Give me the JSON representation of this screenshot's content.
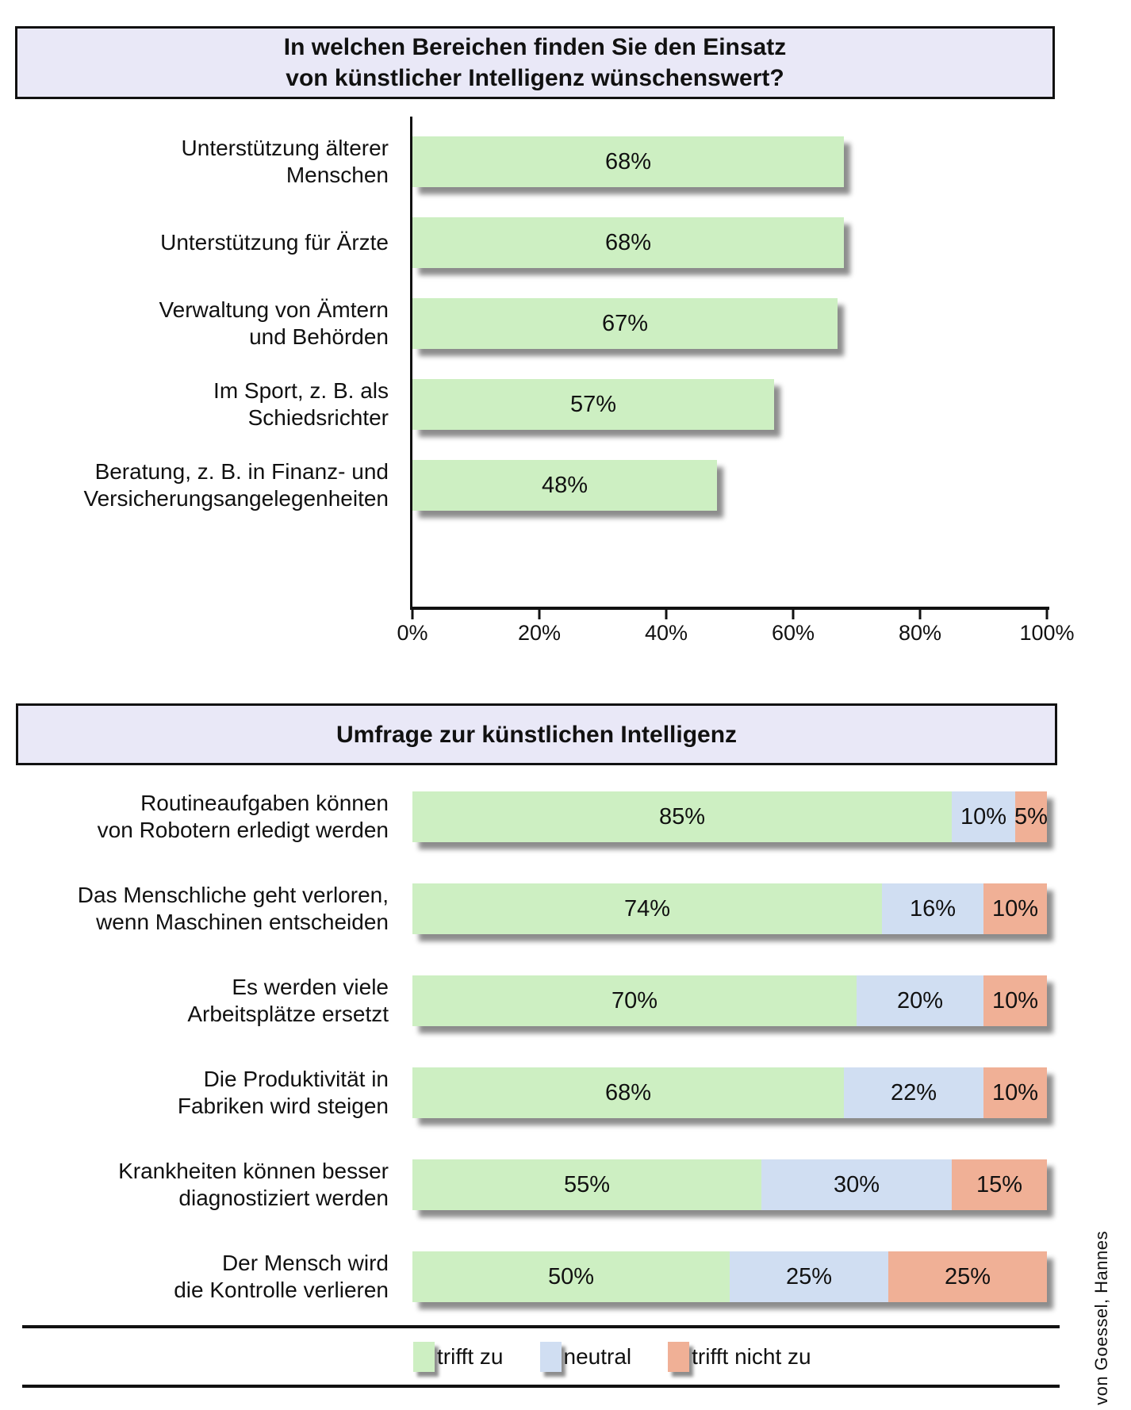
{
  "colors": {
    "agree_green": "#cdefc2",
    "neutral_blue": "#d0def2",
    "disagree_salmon": "#f0b096",
    "header_bg": "#e9e8f7",
    "border": "#111111"
  },
  "chart1": {
    "title_line1": "In welchen Bereichen finden Sie den Einsatz",
    "title_line2": "von künstlicher Intelligenz wünschenswert?",
    "bars": [
      {
        "label_line1": "Unterstützung älterer",
        "label_line2": "Menschen",
        "value": 68,
        "value_label": "68%"
      },
      {
        "label_line1": "Unterstützung für Ärzte",
        "label_line2": "",
        "value": 68,
        "value_label": "68%"
      },
      {
        "label_line1": "Verwaltung von Ämtern",
        "label_line2": "und Behörden",
        "value": 67,
        "value_label": "67%"
      },
      {
        "label_line1": "Im Sport, z. B. als",
        "label_line2": "Schiedsrichter",
        "value": 57,
        "value_label": "57%"
      },
      {
        "label_line1": "Beratung, z. B. in Finanz- und",
        "label_line2": "Versicherungsangelegenheiten",
        "value": 48,
        "value_label": "48%"
      }
    ],
    "axis_ticks": [
      "0%",
      "20%",
      "40%",
      "60%",
      "80%",
      "100%"
    ]
  },
  "chart2": {
    "title": "Umfrage zur künstlichen Intelligenz",
    "rows": [
      {
        "label_line1": "Routineaufgaben können",
        "label_line2": "von Robotern erledigt werden",
        "segments": [
          {
            "value": 85,
            "label": "85%"
          },
          {
            "value": 10,
            "label": "10%"
          },
          {
            "value": 5,
            "label": "5%"
          }
        ]
      },
      {
        "label_line1": "Das Menschliche geht verloren,",
        "label_line2": "wenn Maschinen entscheiden",
        "segments": [
          {
            "value": 74,
            "label": "74%"
          },
          {
            "value": 16,
            "label": "16%"
          },
          {
            "value": 10,
            "label": "10%"
          }
        ]
      },
      {
        "label_line1": "Es werden viele",
        "label_line2": "Arbeitsplätze ersetzt",
        "segments": [
          {
            "value": 70,
            "label": "70%"
          },
          {
            "value": 20,
            "label": "20%"
          },
          {
            "value": 10,
            "label": "10%"
          }
        ]
      },
      {
        "label_line1": "Die Produktivität in",
        "label_line2": "Fabriken wird steigen",
        "segments": [
          {
            "value": 68,
            "label": "68%"
          },
          {
            "value": 22,
            "label": "22%"
          },
          {
            "value": 10,
            "label": "10%"
          }
        ]
      },
      {
        "label_line1": "Krankheiten können besser",
        "label_line2": "diagnostiziert werden",
        "segments": [
          {
            "value": 55,
            "label": "55%"
          },
          {
            "value": 30,
            "label": "30%"
          },
          {
            "value": 15,
            "label": "15%"
          }
        ]
      },
      {
        "label_line1": "Der Mensch wird",
        "label_line2": "die Kontrolle verlieren",
        "segments": [
          {
            "value": 50,
            "label": "50%"
          },
          {
            "value": 25,
            "label": "25%"
          },
          {
            "value": 25,
            "label": "25%"
          }
        ]
      }
    ],
    "legend": [
      {
        "label": "trifft zu"
      },
      {
        "label": "neutral"
      },
      {
        "label": "trifft nicht zu"
      }
    ]
  },
  "attribution": "von Goessel, Hannes",
  "chart_data": [
    {
      "type": "bar",
      "orientation": "horizontal",
      "title": "In welchen Bereichen finden Sie den Einsatz von künstlicher Intelligenz wünschenswert?",
      "categories": [
        "Unterstützung älterer Menschen",
        "Unterstützung für Ärzte",
        "Verwaltung von Ämtern und Behörden",
        "Im Sport, z. B. als Schiedsrichter",
        "Beratung, z. B. in Finanz- und Versicherungsangelegenheiten"
      ],
      "values": [
        68,
        68,
        67,
        57,
        48
      ],
      "xlabel": "",
      "ylabel": "",
      "xlim": [
        0,
        100
      ],
      "x_tick_labels": [
        "0%",
        "20%",
        "40%",
        "60%",
        "80%",
        "100%"
      ],
      "grid": false,
      "bar_color": "#cdefc2",
      "data_labels": "inside, percent"
    },
    {
      "type": "bar",
      "subtype": "stacked",
      "orientation": "horizontal",
      "title": "Umfrage zur künstlichen Intelligenz",
      "categories": [
        "Routineaufgaben können von Robotern erledigt werden",
        "Das Menschliche geht verloren, wenn Maschinen entscheiden",
        "Es werden viele Arbeitsplätze ersetzt",
        "Die Produktivität in Fabriken wird steigen",
        "Krankheiten können besser diagnostiziert werden",
        "Der Mensch wird die Kontrolle verlieren"
      ],
      "series": [
        {
          "name": "trifft zu",
          "color": "#cdefc2",
          "values": [
            85,
            74,
            70,
            68,
            55,
            50
          ]
        },
        {
          "name": "neutral",
          "color": "#d0def2",
          "values": [
            10,
            16,
            20,
            22,
            30,
            25
          ]
        },
        {
          "name": "trifft nicht zu",
          "color": "#f0b096",
          "values": [
            5,
            10,
            10,
            10,
            15,
            25
          ]
        }
      ],
      "xlim": [
        0,
        100
      ],
      "grid": false,
      "legend_position": "bottom",
      "data_labels": "inside, percent"
    }
  ]
}
